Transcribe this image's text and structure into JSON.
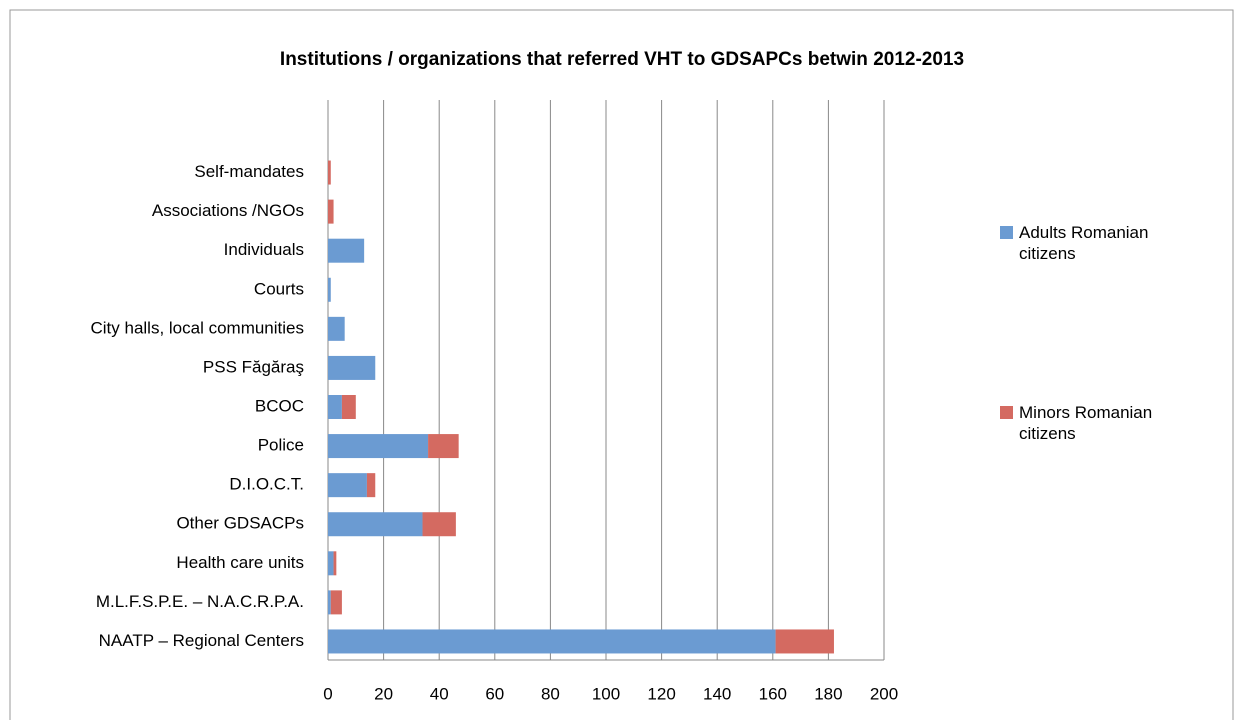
{
  "chart_data": {
    "type": "stacked-barh",
    "title": "Institutions / organizations that referred VHT to GDSAPCs betwin 2012-2013",
    "categories": [
      "Self-mandates",
      "Associations /NGOs",
      "Individuals",
      "Courts",
      "City halls, local communities",
      "PSS Făgăraş",
      "BCOC",
      "Police",
      "D.I.O.C.T.",
      "Other GDSACPs",
      "Health care units",
      "M.L.F.S.P.E. – N.A.C.R.P.A.",
      "NAATP – Regional Centers"
    ],
    "series": [
      {
        "name": "Adults Romanian citizens",
        "color": "#6b9bd2",
        "values": [
          0,
          0,
          13,
          1,
          6,
          17,
          5,
          36,
          14,
          34,
          2,
          1,
          161
        ]
      },
      {
        "name": "Minors Romanian citizens",
        "color": "#d46a61",
        "values": [
          1,
          2,
          0,
          0,
          0,
          0,
          5,
          11,
          3,
          12,
          1,
          4,
          21
        ]
      }
    ],
    "xlim": [
      0,
      200
    ],
    "xticks": [
      0,
      20,
      40,
      60,
      80,
      100,
      120,
      140,
      160,
      180,
      200
    ],
    "grid": true,
    "legend": "right"
  }
}
